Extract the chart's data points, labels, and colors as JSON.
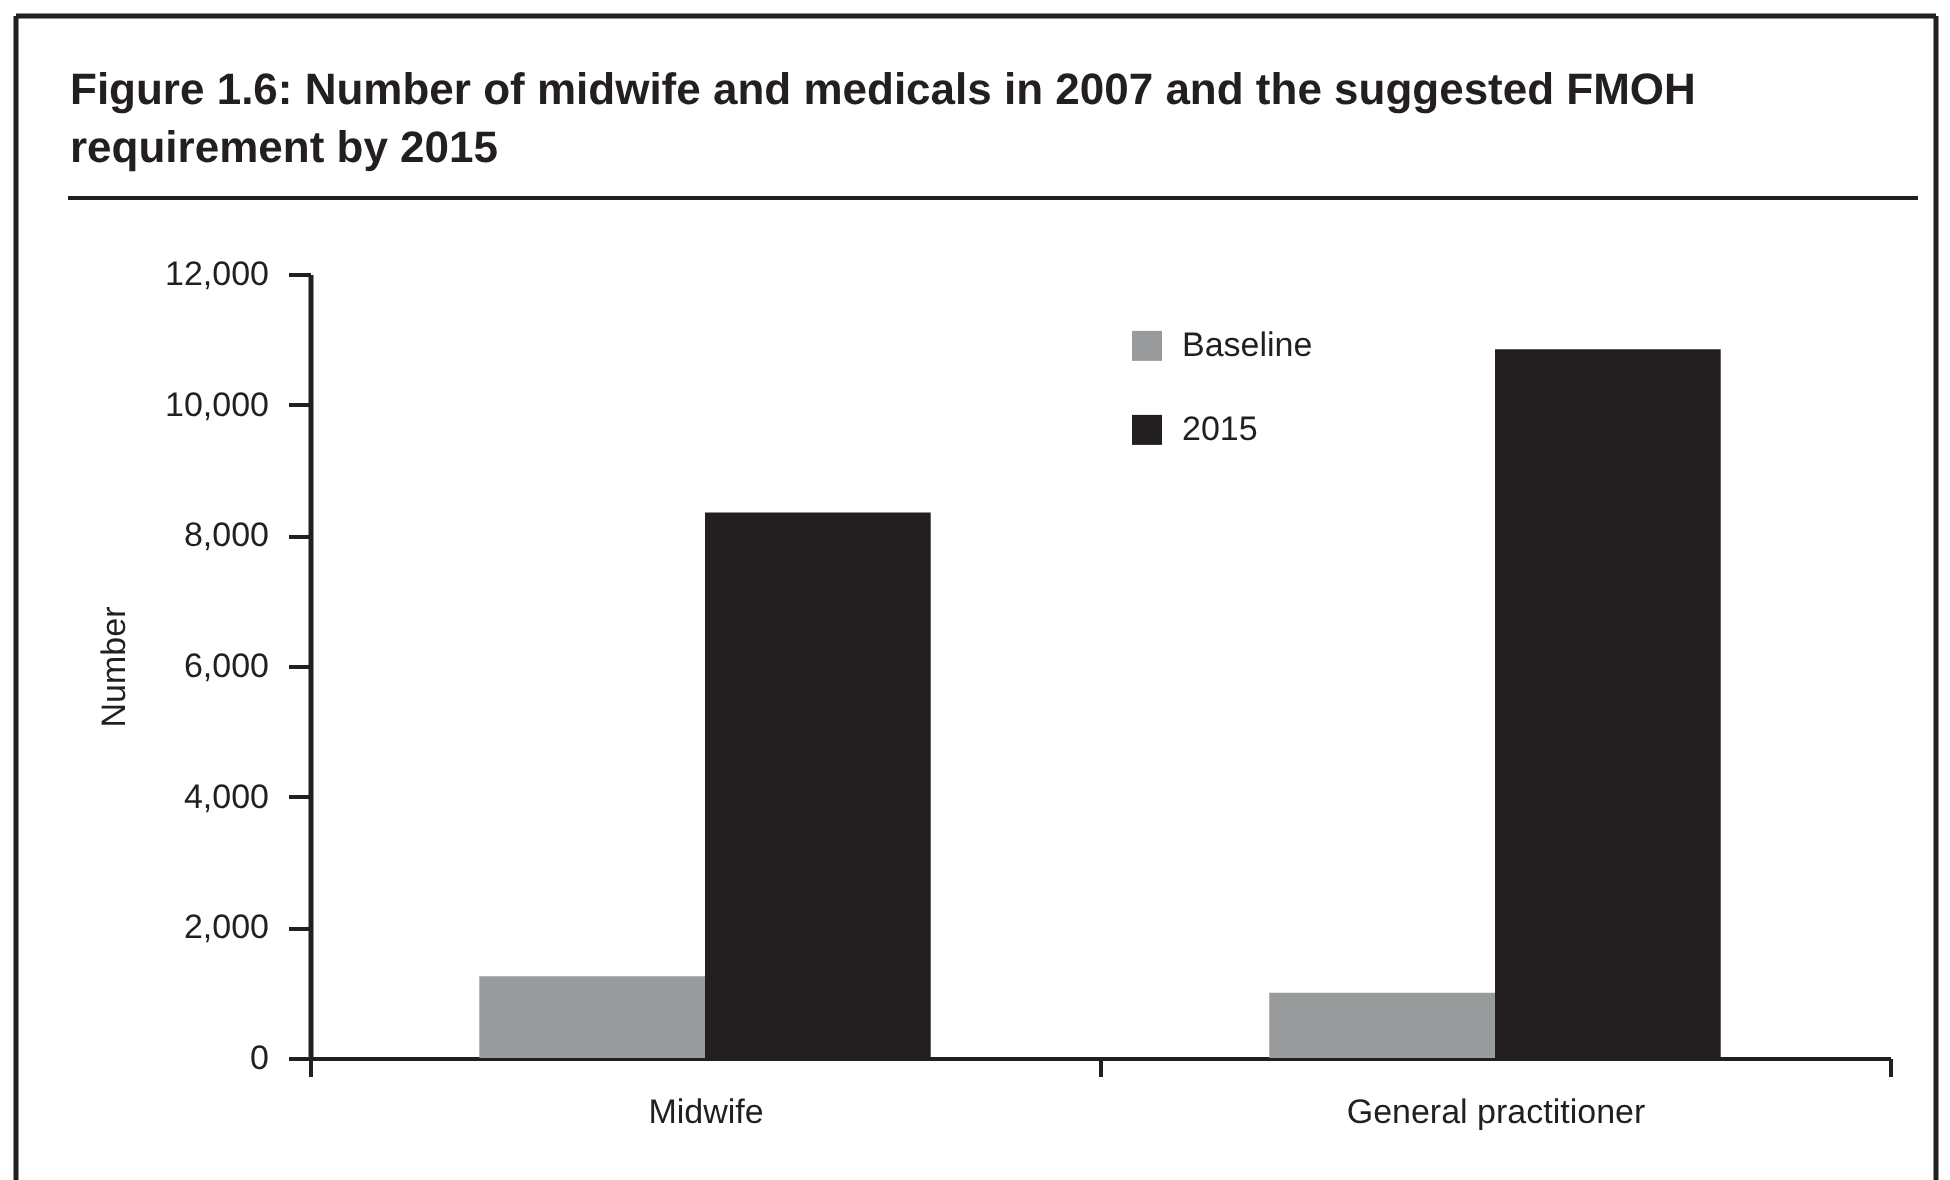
{
  "chart_data": {
    "type": "bar",
    "title": "Figure 1.6: Number of midwife and medicals in 2007 and the suggested FMOH requirement by 2015",
    "ylabel": "Number",
    "categories": [
      "Midwife",
      "General practitioner"
    ],
    "series": [
      {
        "name": "Baseline",
        "color": "#999a9c",
        "values": [
          1250,
          1000
        ]
      },
      {
        "name": "2015",
        "color": "#231f20",
        "values": [
          8350,
          10850
        ]
      }
    ],
    "ylim": [
      0,
      12000
    ],
    "yticks": [
      0,
      {
        "value": 2000,
        "label": "2,000"
      },
      {
        "value": 4000,
        "label": "4,000"
      },
      {
        "value": 6000,
        "label": "6,000"
      },
      {
        "value": 8000,
        "label": "8,000"
      },
      {
        "value": 10000,
        "label": "10,000"
      },
      {
        "value": 12000,
        "label": "12,000"
      }
    ],
    "legend": "top"
  }
}
